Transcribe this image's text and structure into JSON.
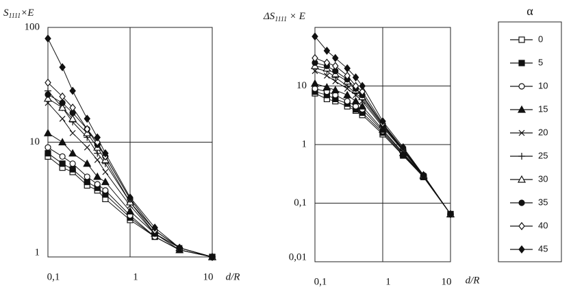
{
  "chart_data": [
    {
      "type": "line",
      "ylabel": [
        "S",
        "1111",
        "×E"
      ],
      "xlabel": "d/R",
      "log_x": true,
      "log_y": true,
      "grid": true,
      "x": [
        0.1,
        0.15,
        0.2,
        0.3,
        0.4,
        0.5,
        1,
        2,
        4,
        10
      ],
      "xlim": [
        0.1,
        10
      ],
      "xticks": [
        {
          "value": 0.1,
          "label": "0,1"
        },
        1,
        10
      ],
      "ylim": [
        1,
        100
      ],
      "yticks": [
        1,
        10,
        100
      ],
      "series": [
        {
          "name": "0",
          "color": "#111",
          "marker": "square-open",
          "values": [
            7.5,
            6,
            5.5,
            4.2,
            3.8,
            3.2,
            2.1,
            1.5,
            1.15,
            1
          ]
        },
        {
          "name": "5",
          "color": "#111",
          "marker": "square",
          "values": [
            8,
            6.5,
            5.8,
            4.5,
            4,
            3.5,
            2.2,
            1.5,
            1.15,
            1
          ]
        },
        {
          "name": "10",
          "color": "#111",
          "marker": "circle-open",
          "values": [
            9,
            7.5,
            6.5,
            5,
            4.3,
            3.8,
            2.3,
            1.5,
            1.15,
            1
          ]
        },
        {
          "name": "15",
          "color": "#111",
          "marker": "triangle",
          "values": [
            12,
            10,
            8,
            6.5,
            5,
            4.5,
            2.5,
            1.6,
            1.15,
            1
          ]
        },
        {
          "name": "20",
          "color": "#111",
          "marker": "x",
          "values": [
            22,
            16,
            12,
            9,
            7,
            5.5,
            2.8,
            1.6,
            1.2,
            1
          ]
        },
        {
          "name": "25",
          "color": "#111",
          "marker": "plus",
          "values": [
            28,
            20,
            15,
            11,
            8,
            6.5,
            3,
            1.6,
            1.2,
            1
          ]
        },
        {
          "name": "30",
          "color": "#111",
          "marker": "triangle-open",
          "values": [
            24,
            20,
            16,
            12,
            9,
            7,
            3,
            1.7,
            1.2,
            1
          ]
        },
        {
          "name": "35",
          "color": "#111",
          "marker": "circle",
          "values": [
            26,
            22,
            18,
            13,
            9.5,
            7.5,
            3.2,
            1.7,
            1.2,
            1
          ]
        },
        {
          "name": "40",
          "color": "#111",
          "marker": "diamond-open",
          "values": [
            33,
            25,
            20,
            13,
            10,
            7.5,
            3.2,
            1.7,
            1.2,
            1
          ]
        },
        {
          "name": "45",
          "color": "#111",
          "marker": "diamond",
          "values": [
            80,
            45,
            28,
            16,
            11,
            8,
            3.3,
            1.8,
            1.2,
            1
          ]
        }
      ]
    },
    {
      "type": "line",
      "ylabel": [
        "ΔS",
        "1111",
        " × E"
      ],
      "xlabel": "d/R",
      "log_x": true,
      "log_y": true,
      "grid": true,
      "x": [
        0.1,
        0.15,
        0.2,
        0.3,
        0.4,
        0.5,
        1,
        2,
        4,
        10
      ],
      "xlim": [
        0.1,
        10
      ],
      "xticks": [
        {
          "value": 0.1,
          "label": "0,1"
        },
        1,
        10
      ],
      "ylim": [
        0.01,
        100
      ],
      "yticks": [
        {
          "value": 0.01,
          "label": "0,01"
        },
        {
          "value": 0.1,
          "label": "0,1"
        },
        1,
        10
      ],
      "series": [
        {
          "color": "#111",
          "marker": "square-open",
          "values": [
            7.5,
            6,
            5.5,
            4.5,
            3.8,
            3.2,
            1.5,
            0.65,
            0.28,
            0.065
          ]
        },
        {
          "color": "#111",
          "marker": "square",
          "values": [
            8,
            7,
            6,
            5,
            4,
            3.5,
            1.6,
            0.67,
            0.28,
            0.065
          ]
        },
        {
          "color": "#111",
          "marker": "circle-open",
          "values": [
            9,
            8,
            7,
            5.5,
            4.5,
            4,
            1.7,
            0.7,
            0.28,
            0.065
          ]
        },
        {
          "color": "#111",
          "marker": "triangle",
          "values": [
            11,
            9.5,
            8.5,
            7,
            5.5,
            4.5,
            1.8,
            0.72,
            0.29,
            0.065
          ]
        },
        {
          "color": "#111",
          "marker": "x",
          "values": [
            18,
            15,
            12,
            9,
            7,
            5.5,
            2,
            0.78,
            0.29,
            0.065
          ]
        },
        {
          "color": "#111",
          "marker": "plus",
          "values": [
            20,
            18,
            14,
            10,
            7.5,
            6,
            2.1,
            0.8,
            0.29,
            0.065
          ]
        },
        {
          "color": "#111",
          "marker": "triangle-open",
          "values": [
            22,
            20,
            16,
            12,
            8.5,
            6.5,
            2.2,
            0.82,
            0.3,
            0.065
          ]
        },
        {
          "color": "#111",
          "marker": "circle",
          "values": [
            25,
            22,
            18,
            13,
            9,
            7,
            2.2,
            0.84,
            0.3,
            0.065
          ]
        },
        {
          "color": "#111",
          "marker": "diamond-open",
          "values": [
            30,
            25,
            22,
            15,
            10,
            8,
            2.3,
            0.85,
            0.3,
            0.065
          ]
        },
        {
          "color": "#111",
          "marker": "diamond",
          "values": [
            70,
            40,
            30,
            20,
            14,
            10,
            2.5,
            0.9,
            0.3,
            0.065
          ]
        }
      ]
    }
  ],
  "legend": {
    "title": "α"
  }
}
